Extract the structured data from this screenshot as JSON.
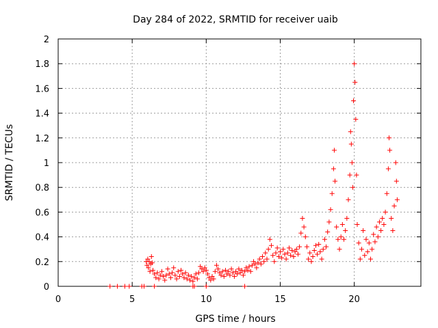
{
  "chart_data": {
    "type": "scatter",
    "title": "Day 284 of 2022, SRMTID for receiver uaib",
    "xlabel": "GPS time / hours",
    "ylabel": "SRMTID / TECUs",
    "xlim": [
      0,
      24.5
    ],
    "ylim": [
      0,
      2
    ],
    "xticks": [
      0,
      5,
      10,
      15,
      20
    ],
    "xtick_labels": [
      "0",
      "5",
      "10",
      "15",
      "20"
    ],
    "yticks": [
      0,
      0.2,
      0.4,
      0.6,
      0.8,
      1,
      1.2,
      1.4,
      1.6,
      1.8,
      2
    ],
    "ytick_labels": [
      "0",
      "0.2",
      "0.4",
      "0.6",
      "0.8",
      "1",
      "1.2",
      "1.4",
      "1.6",
      "1.8",
      "2"
    ],
    "grid": true,
    "marker": "plus",
    "color": "#ff0000",
    "series": [
      {
        "name": "SRMTID",
        "points": [
          [
            3.5,
            0.0
          ],
          [
            4.0,
            0.0
          ],
          [
            4.5,
            0.0
          ],
          [
            4.8,
            0.0
          ],
          [
            5.65,
            0.0
          ],
          [
            5.8,
            0.0
          ],
          [
            6.5,
            0.0
          ],
          [
            9.1,
            0.0
          ],
          [
            9.2,
            0.0
          ],
          [
            10.0,
            0.0
          ],
          [
            12.6,
            0.0
          ],
          [
            5.95,
            0.2
          ],
          [
            6.0,
            0.17
          ],
          [
            6.05,
            0.22
          ],
          [
            6.1,
            0.15
          ],
          [
            6.15,
            0.2
          ],
          [
            6.2,
            0.12
          ],
          [
            6.25,
            0.18
          ],
          [
            6.3,
            0.24
          ],
          [
            6.35,
            0.19
          ],
          [
            6.4,
            0.13
          ],
          [
            6.5,
            0.1
          ],
          [
            6.6,
            0.07
          ],
          [
            6.7,
            0.11
          ],
          [
            6.8,
            0.06
          ],
          [
            6.9,
            0.09
          ],
          [
            7.0,
            0.12
          ],
          [
            7.1,
            0.08
          ],
          [
            7.2,
            0.05
          ],
          [
            7.3,
            0.09
          ],
          [
            7.4,
            0.14
          ],
          [
            7.5,
            0.1
          ],
          [
            7.6,
            0.07
          ],
          [
            7.7,
            0.11
          ],
          [
            7.8,
            0.15
          ],
          [
            7.9,
            0.09
          ],
          [
            8.0,
            0.06
          ],
          [
            8.1,
            0.12
          ],
          [
            8.2,
            0.08
          ],
          [
            8.3,
            0.13
          ],
          [
            8.4,
            0.1
          ],
          [
            8.5,
            0.07
          ],
          [
            8.6,
            0.11
          ],
          [
            8.7,
            0.06
          ],
          [
            8.8,
            0.09
          ],
          [
            8.9,
            0.05
          ],
          [
            9.0,
            0.08
          ],
          [
            9.1,
            0.04
          ],
          [
            9.2,
            0.07
          ],
          [
            9.3,
            0.1
          ],
          [
            9.4,
            0.06
          ],
          [
            9.5,
            0.11
          ],
          [
            9.6,
            0.16
          ],
          [
            9.7,
            0.14
          ],
          [
            9.8,
            0.12
          ],
          [
            9.9,
            0.15
          ],
          [
            10.0,
            0.13
          ],
          [
            10.1,
            0.1
          ],
          [
            10.2,
            0.07
          ],
          [
            10.3,
            0.05
          ],
          [
            10.4,
            0.08
          ],
          [
            10.5,
            0.06
          ],
          [
            10.6,
            0.12
          ],
          [
            10.7,
            0.17
          ],
          [
            10.8,
            0.14
          ],
          [
            10.9,
            0.11
          ],
          [
            11.0,
            0.09
          ],
          [
            11.1,
            0.12
          ],
          [
            11.2,
            0.08
          ],
          [
            11.3,
            0.13
          ],
          [
            11.4,
            0.1
          ],
          [
            11.5,
            0.12
          ],
          [
            11.6,
            0.09
          ],
          [
            11.7,
            0.14
          ],
          [
            11.8,
            0.11
          ],
          [
            11.9,
            0.08
          ],
          [
            12.0,
            0.12
          ],
          [
            12.1,
            0.1
          ],
          [
            12.2,
            0.14
          ],
          [
            12.3,
            0.11
          ],
          [
            12.4,
            0.13
          ],
          [
            12.5,
            0.09
          ],
          [
            12.6,
            0.12
          ],
          [
            12.7,
            0.15
          ],
          [
            12.8,
            0.13
          ],
          [
            12.9,
            0.16
          ],
          [
            13.0,
            0.12
          ],
          [
            13.1,
            0.17
          ],
          [
            13.2,
            0.2
          ],
          [
            13.3,
            0.18
          ],
          [
            13.4,
            0.15
          ],
          [
            13.5,
            0.19
          ],
          [
            13.6,
            0.22
          ],
          [
            13.7,
            0.18
          ],
          [
            13.8,
            0.24
          ],
          [
            13.9,
            0.2
          ],
          [
            14.0,
            0.27
          ],
          [
            14.1,
            0.22
          ],
          [
            14.2,
            0.3
          ],
          [
            14.3,
            0.38
          ],
          [
            14.4,
            0.33
          ],
          [
            14.5,
            0.25
          ],
          [
            14.6,
            0.2
          ],
          [
            14.7,
            0.27
          ],
          [
            14.8,
            0.31
          ],
          [
            14.9,
            0.24
          ],
          [
            15.0,
            0.28
          ],
          [
            15.1,
            0.23
          ],
          [
            15.2,
            0.3
          ],
          [
            15.3,
            0.26
          ],
          [
            15.4,
            0.22
          ],
          [
            15.5,
            0.27
          ],
          [
            15.6,
            0.31
          ],
          [
            15.7,
            0.25
          ],
          [
            15.8,
            0.29
          ],
          [
            15.9,
            0.24
          ],
          [
            16.0,
            0.28
          ],
          [
            16.1,
            0.3
          ],
          [
            16.2,
            0.26
          ],
          [
            16.3,
            0.32
          ],
          [
            16.4,
            0.43
          ],
          [
            16.5,
            0.55
          ],
          [
            16.6,
            0.48
          ],
          [
            16.7,
            0.4
          ],
          [
            16.8,
            0.32
          ],
          [
            16.9,
            0.22
          ],
          [
            17.0,
            0.27
          ],
          [
            17.1,
            0.2
          ],
          [
            17.2,
            0.24
          ],
          [
            17.3,
            0.29
          ],
          [
            17.4,
            0.33
          ],
          [
            17.5,
            0.26
          ],
          [
            17.6,
            0.34
          ],
          [
            17.7,
            0.28
          ],
          [
            17.8,
            0.22
          ],
          [
            17.9,
            0.3
          ],
          [
            18.0,
            0.38
          ],
          [
            18.1,
            0.32
          ],
          [
            18.2,
            0.44
          ],
          [
            18.3,
            0.52
          ],
          [
            18.4,
            0.62
          ],
          [
            18.5,
            0.75
          ],
          [
            18.6,
            0.95
          ],
          [
            18.65,
            1.1
          ],
          [
            18.7,
            0.85
          ],
          [
            18.8,
            0.48
          ],
          [
            18.9,
            0.38
          ],
          [
            19.0,
            0.3
          ],
          [
            19.1,
            0.4
          ],
          [
            19.2,
            0.5
          ],
          [
            19.3,
            0.38
          ],
          [
            19.4,
            0.45
          ],
          [
            19.5,
            0.55
          ],
          [
            19.6,
            0.7
          ],
          [
            19.7,
            0.9
          ],
          [
            19.75,
            1.25
          ],
          [
            19.8,
            1.15
          ],
          [
            19.85,
            1.0
          ],
          [
            19.9,
            0.8
          ],
          [
            19.95,
            1.5
          ],
          [
            20.0,
            1.8
          ],
          [
            20.05,
            1.65
          ],
          [
            20.1,
            1.35
          ],
          [
            20.15,
            0.9
          ],
          [
            20.2,
            0.5
          ],
          [
            20.3,
            0.35
          ],
          [
            20.4,
            0.22
          ],
          [
            20.5,
            0.3
          ],
          [
            20.6,
            0.45
          ],
          [
            20.7,
            0.25
          ],
          [
            20.8,
            0.38
          ],
          [
            20.9,
            0.28
          ],
          [
            21.0,
            0.35
          ],
          [
            21.1,
            0.22
          ],
          [
            21.2,
            0.3
          ],
          [
            21.3,
            0.42
          ],
          [
            21.4,
            0.36
          ],
          [
            21.5,
            0.48
          ],
          [
            21.6,
            0.4
          ],
          [
            21.7,
            0.52
          ],
          [
            21.8,
            0.45
          ],
          [
            21.9,
            0.55
          ],
          [
            22.0,
            0.5
          ],
          [
            22.1,
            0.6
          ],
          [
            22.2,
            0.75
          ],
          [
            22.3,
            0.95
          ],
          [
            22.35,
            1.2
          ],
          [
            22.4,
            1.1
          ],
          [
            22.5,
            0.55
          ],
          [
            22.6,
            0.45
          ],
          [
            22.7,
            0.65
          ],
          [
            22.8,
            1.0
          ],
          [
            22.85,
            0.85
          ],
          [
            22.9,
            0.7
          ]
        ]
      }
    ]
  }
}
